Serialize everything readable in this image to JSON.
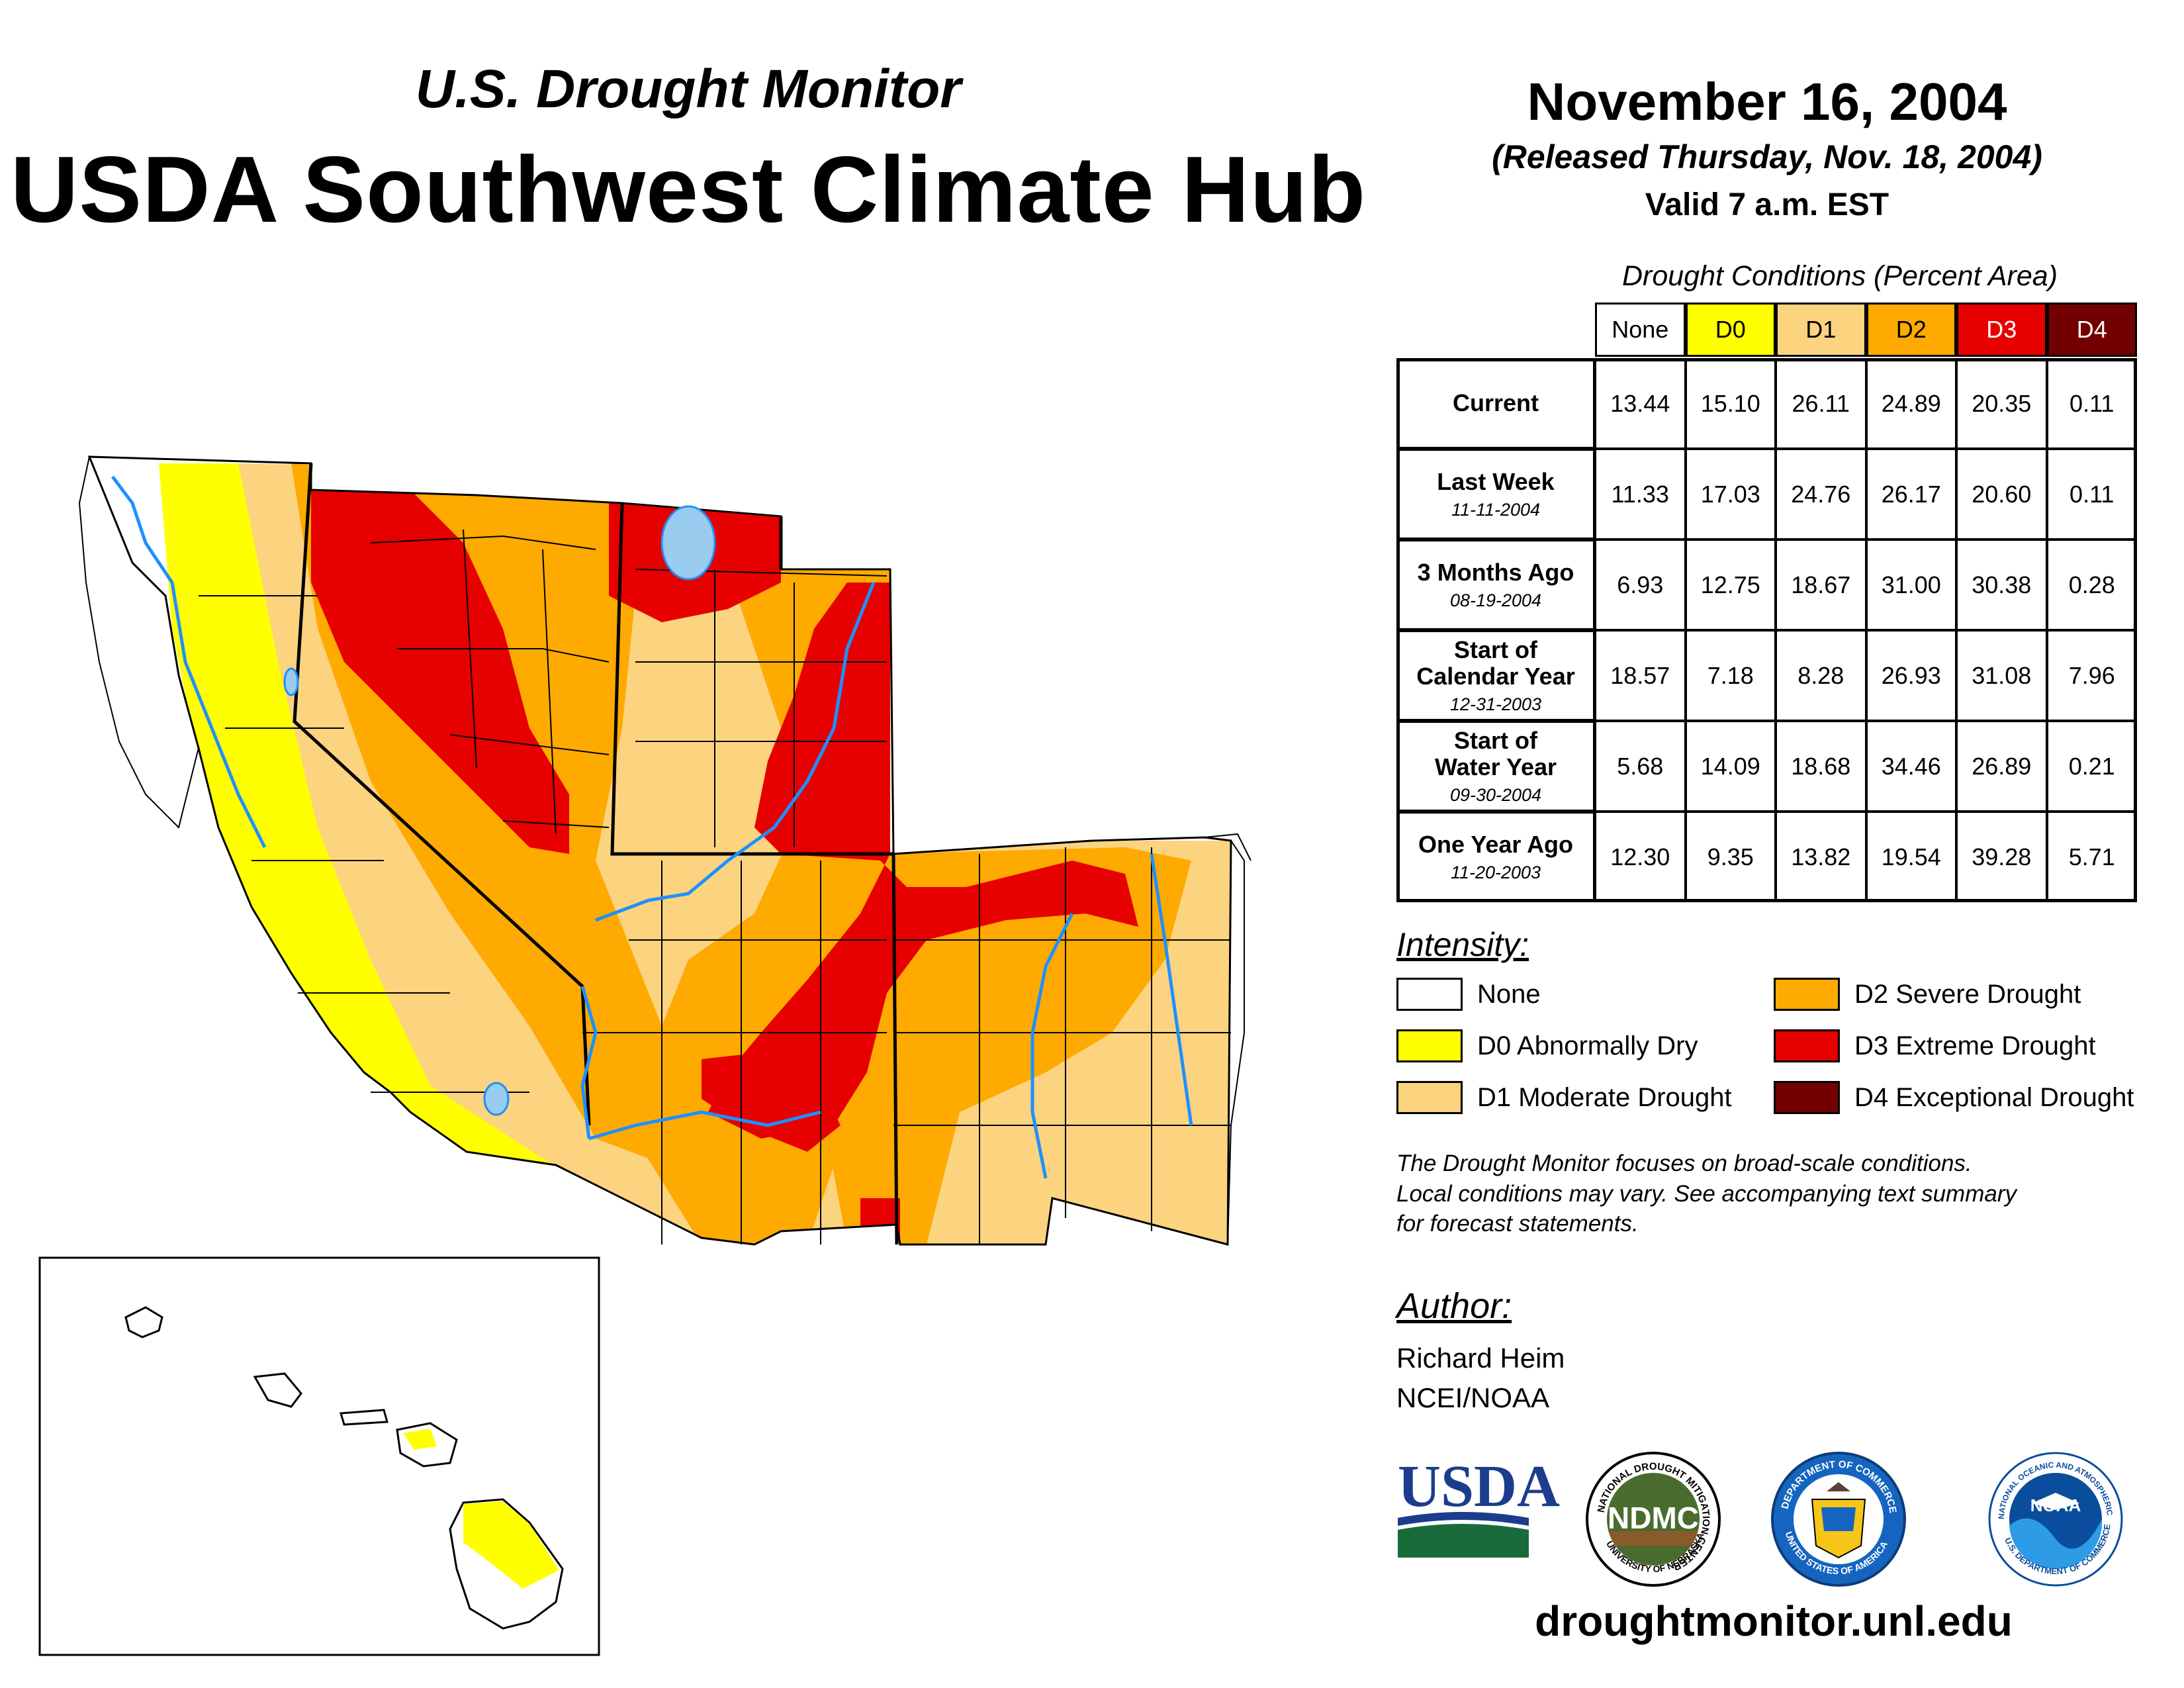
{
  "header": {
    "super_title": "U.S. Drought Monitor",
    "main_title": "USDA Southwest Climate Hub",
    "date": "November 16, 2004",
    "released": "(Released Thursday, Nov. 18, 2004)",
    "valid": "Valid 7 a.m. EST"
  },
  "table": {
    "caption": "Drought Conditions (Percent Area)",
    "columns": [
      "None",
      "D0",
      "D1",
      "D2",
      "D3",
      "D4"
    ],
    "rows": [
      {
        "label": [
          "Current"
        ],
        "date": "",
        "values": [
          "13.44",
          "15.10",
          "26.11",
          "24.89",
          "20.35",
          "0.11"
        ]
      },
      {
        "label": [
          "Last Week"
        ],
        "date": "11-11-2004",
        "values": [
          "11.33",
          "17.03",
          "24.76",
          "26.17",
          "20.60",
          "0.11"
        ]
      },
      {
        "label": [
          "3 Months Ago"
        ],
        "date": "08-19-2004",
        "values": [
          "6.93",
          "12.75",
          "18.67",
          "31.00",
          "30.38",
          "0.28"
        ]
      },
      {
        "label": [
          "Start of",
          "Calendar Year"
        ],
        "date": "12-31-2003",
        "values": [
          "18.57",
          "7.18",
          "8.28",
          "26.93",
          "31.08",
          "7.96"
        ]
      },
      {
        "label": [
          "Start of",
          "Water Year"
        ],
        "date": "09-30-2004",
        "values": [
          "5.68",
          "14.09",
          "18.68",
          "34.46",
          "26.89",
          "0.21"
        ]
      },
      {
        "label": [
          "One Year Ago"
        ],
        "date": "11-20-2003",
        "values": [
          "12.30",
          "9.35",
          "13.82",
          "19.54",
          "39.28",
          "5.71"
        ]
      }
    ]
  },
  "legend": {
    "title": "Intensity:",
    "items": [
      {
        "label": "None",
        "color": "#ffffff"
      },
      {
        "label": "D0 Abnormally Dry",
        "color": "#ffff00"
      },
      {
        "label": "D1 Moderate Drought",
        "color": "#fcd37f"
      },
      {
        "label": "D2 Severe Drought",
        "color": "#ffaa00"
      },
      {
        "label": "D3 Extreme Drought",
        "color": "#e60000"
      },
      {
        "label": "D4 Exceptional Drought",
        "color": "#730000"
      }
    ]
  },
  "note": [
    "The Drought Monitor focuses on broad-scale conditions.",
    "Local conditions may vary. See accompanying text summary",
    "for forecast statements."
  ],
  "author": {
    "title": "Author:",
    "name": "Richard Heim",
    "org": "NCEI/NOAA"
  },
  "logos": {
    "usda": "USDA",
    "ndmc": "NDMC",
    "ndmc_ring": "NATIONAL DROUGHT MITIGATION CENTER",
    "ndmc_ring_bottom": "UNIVERSITY OF NEBRASKA",
    "doc_ring": "DEPARTMENT OF COMMERCE",
    "doc_ring_bottom": "UNITED STATES OF AMERICA",
    "noaa": "NOAA",
    "noaa_ring": "NATIONAL OCEANIC AND ATMOSPHERIC ADMINISTRATION",
    "noaa_ring_bottom": "U.S. DEPARTMENT OF COMMERCE"
  },
  "website": "droughtmonitor.unl.edu",
  "map_colors": {
    "none": "#ffffff",
    "d0": "#ffff00",
    "d1": "#fcd37f",
    "d2": "#ffaa00",
    "d3": "#e60000",
    "d4": "#730000",
    "water": "#1e90ff",
    "lake": "#99ccee"
  }
}
